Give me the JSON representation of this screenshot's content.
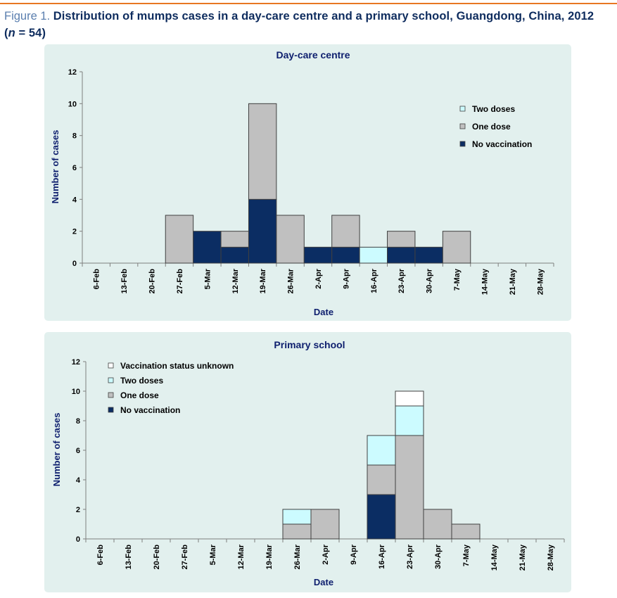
{
  "figure": {
    "label": "Figure 1.",
    "title_line1": "Distribution of mumps cases in a day-care centre and a primary school, Guangdong, China, 2012",
    "title_n_open": "(",
    "title_n_italic": "n",
    "title_n_rest": " = 54)"
  },
  "colors": {
    "no_vaccination": "#0b2d63",
    "one_dose": "#c0c0c0",
    "two_doses": "#ccfbff",
    "unknown": "#ffffff",
    "panel_bg": "#e2f0ee"
  },
  "chart_data": [
    {
      "type": "bar",
      "stacked": true,
      "title": "Day-care centre",
      "xlabel": "Date",
      "ylabel": "Number of cases",
      "ylim": [
        0,
        12
      ],
      "yticks": [
        0,
        2,
        4,
        6,
        8,
        10,
        12
      ],
      "legend_position": "right",
      "categories": [
        "6-Feb",
        "13-Feb",
        "20-Feb",
        "27-Feb",
        "5-Mar",
        "12-Mar",
        "19-Mar",
        "26-Mar",
        "2-Apr",
        "9-Apr",
        "16-Apr",
        "23-Apr",
        "30-Apr",
        "7-May",
        "14-May",
        "21-May",
        "28-May"
      ],
      "series": [
        {
          "name": "No vaccination",
          "color_key": "no_vaccination",
          "values": [
            0,
            0,
            0,
            0,
            2,
            1,
            4,
            0,
            1,
            1,
            0,
            1,
            1,
            0,
            0,
            0,
            0
          ]
        },
        {
          "name": "One dose",
          "color_key": "one_dose",
          "values": [
            0,
            0,
            0,
            3,
            0,
            1,
            6,
            3,
            0,
            2,
            0,
            1,
            0,
            2,
            0,
            0,
            0
          ]
        },
        {
          "name": "Two doses",
          "color_key": "two_doses",
          "values": [
            0,
            0,
            0,
            0,
            0,
            0,
            0,
            0,
            0,
            0,
            1,
            0,
            0,
            0,
            0,
            0,
            0
          ]
        }
      ],
      "legend_order": [
        "Two doses",
        "One dose",
        "No vaccination"
      ]
    },
    {
      "type": "bar",
      "stacked": true,
      "title": "Primary school",
      "xlabel": "Date",
      "ylabel": "Number of cases",
      "ylim": [
        0,
        12
      ],
      "yticks": [
        0,
        2,
        4,
        6,
        8,
        10,
        12
      ],
      "legend_position": "top-left",
      "categories": [
        "6-Feb",
        "13-Feb",
        "20-Feb",
        "27-Feb",
        "5-Mar",
        "12-Mar",
        "19-Mar",
        "26-Mar",
        "2-Apr",
        "9-Apr",
        "16-Apr",
        "23-Apr",
        "30-Apr",
        "7-May",
        "14-May",
        "21-May",
        "28-May"
      ],
      "series": [
        {
          "name": "No vaccination",
          "color_key": "no_vaccination",
          "values": [
            0,
            0,
            0,
            0,
            0,
            0,
            0,
            0,
            0,
            0,
            3,
            0,
            0,
            0,
            0,
            0,
            0
          ]
        },
        {
          "name": "One dose",
          "color_key": "one_dose",
          "values": [
            0,
            0,
            0,
            0,
            0,
            0,
            0,
            1,
            2,
            0,
            2,
            7,
            2,
            1,
            0,
            0,
            0
          ]
        },
        {
          "name": "Two doses",
          "color_key": "two_doses",
          "values": [
            0,
            0,
            0,
            0,
            0,
            0,
            0,
            1,
            0,
            0,
            2,
            2,
            0,
            0,
            0,
            0,
            0
          ]
        },
        {
          "name": "Vaccination status unknown",
          "color_key": "unknown",
          "values": [
            0,
            0,
            0,
            0,
            0,
            0,
            0,
            0,
            0,
            0,
            0,
            1,
            0,
            0,
            0,
            0,
            0
          ]
        }
      ],
      "legend_order": [
        "Vaccination status unknown",
        "Two doses",
        "One dose",
        "No vaccination"
      ]
    }
  ]
}
